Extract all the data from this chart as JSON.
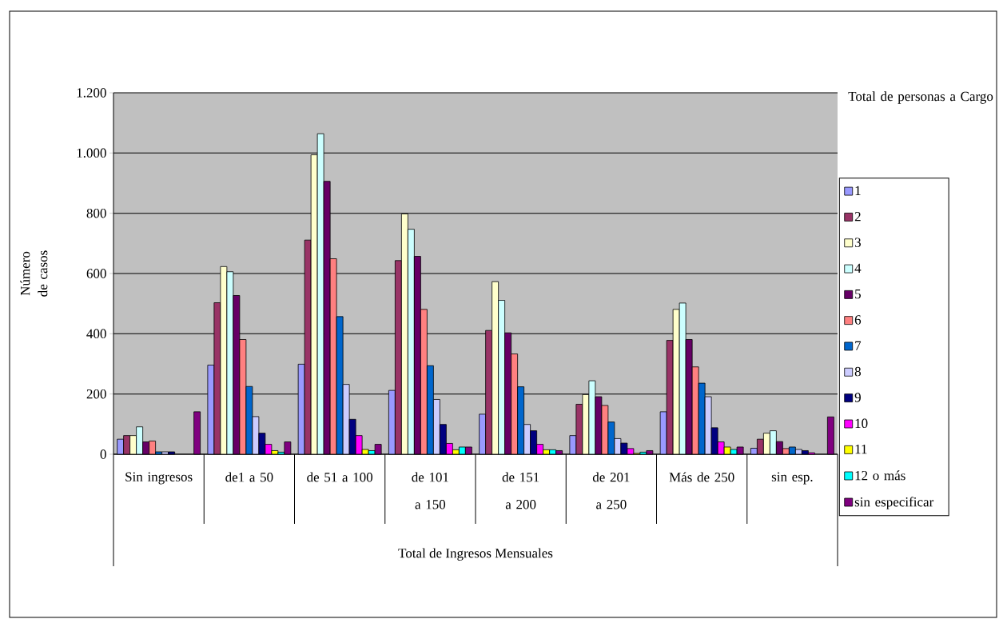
{
  "chart_data": {
    "type": "bar",
    "legend_title": "Total de personas a Cargo",
    "xlabel": "Total de Ingresos Mensuales",
    "ylabel": "Número de casos",
    "categories": [
      "Sin ingresos",
      "de1 a 50",
      "de 51 a 100",
      "de 101 a 150",
      "de 151 a 200",
      "de 201 a 250",
      "Más de 250",
      "sin esp."
    ],
    "series": [
      {
        "name": "1",
        "color": "#9999ff",
        "values": [
          50,
          296,
          299,
          212,
          133,
          62,
          141,
          20
        ]
      },
      {
        "name": "2",
        "color": "#993366",
        "values": [
          62,
          503,
          711,
          643,
          411,
          166,
          378,
          50
        ]
      },
      {
        "name": "3",
        "color": "#ffffcc",
        "values": [
          62,
          623,
          994,
          798,
          573,
          198,
          481,
          70
        ]
      },
      {
        "name": "4",
        "color": "#ccffff",
        "values": [
          91,
          606,
          1064,
          747,
          511,
          244,
          502,
          78
        ]
      },
      {
        "name": "5",
        "color": "#660066",
        "values": [
          41,
          527,
          906,
          657,
          403,
          191,
          381,
          42
        ]
      },
      {
        "name": "6",
        "color": "#ff8080",
        "values": [
          44,
          381,
          649,
          481,
          333,
          162,
          290,
          19
        ]
      },
      {
        "name": "7",
        "color": "#0066cc",
        "values": [
          8,
          225,
          457,
          294,
          224,
          107,
          236,
          24
        ]
      },
      {
        "name": "8",
        "color": "#ccccff",
        "values": [
          8,
          125,
          232,
          182,
          99,
          52,
          191,
          16
        ]
      },
      {
        "name": "9",
        "color": "#000080",
        "values": [
          8,
          70,
          116,
          99,
          78,
          37,
          88,
          12
        ]
      },
      {
        "name": "10",
        "color": "#ff00ff",
        "values": [
          0,
          33,
          62,
          36,
          33,
          19,
          41,
          5
        ]
      },
      {
        "name": "11",
        "color": "#ffff00",
        "values": [
          0,
          12,
          16,
          15,
          15,
          3,
          24,
          0
        ]
      },
      {
        "name": "12 o más",
        "color": "#00ffff",
        "values": [
          0,
          7,
          12,
          24,
          15,
          7,
          16,
          0
        ]
      },
      {
        "name": "sin especificar",
        "color": "#800080",
        "values": [
          141,
          41,
          33,
          24,
          12,
          12,
          24,
          124
        ]
      }
    ],
    "ylim": [
      0,
      1200
    ],
    "yticks": [
      0,
      200,
      400,
      600,
      800,
      {
        "value": 1000,
        "label": "1.000"
      },
      {
        "value": 1200,
        "label": "1.200"
      }
    ],
    "grid": "y",
    "legend": "right"
  }
}
